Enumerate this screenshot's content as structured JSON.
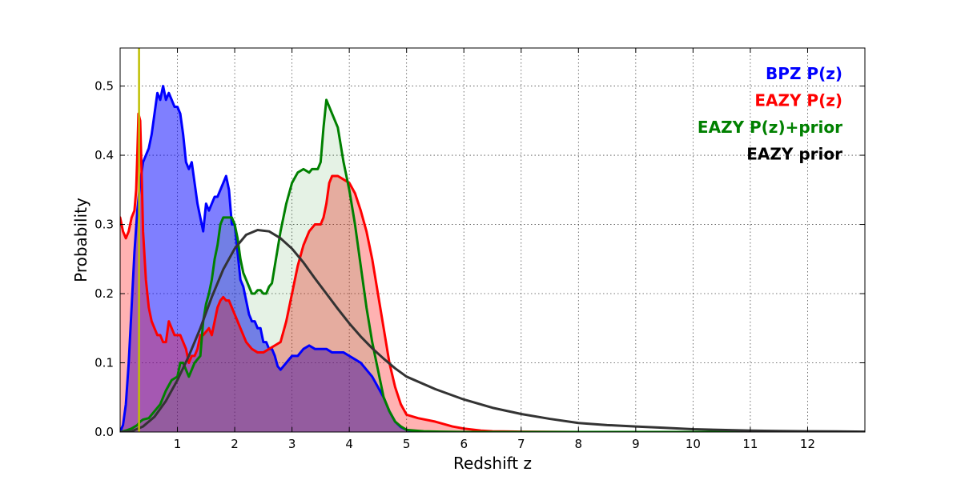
{
  "chart_data": {
    "type": "area",
    "xlabel": "Redshift z",
    "ylabel": "Probability",
    "xlim": [
      0,
      13
    ],
    "ylim": [
      0,
      0.555
    ],
    "xticks": [
      1,
      2,
      3,
      4,
      5,
      6,
      7,
      8,
      9,
      10,
      11,
      12
    ],
    "yticks": [
      0.0,
      0.1,
      0.2,
      0.3,
      0.4,
      0.5
    ],
    "xtick_labels": [
      "1",
      "2",
      "3",
      "4",
      "5",
      "6",
      "7",
      "8",
      "9",
      "10",
      "11",
      "12"
    ],
    "ytick_labels": [
      "0.0",
      "0.1",
      "0.2",
      "0.3",
      "0.4",
      "0.5"
    ],
    "grid": true,
    "legend_position": "top-right",
    "vline": {
      "x": 0.33,
      "color": "#bfbf00"
    },
    "series": [
      {
        "name": "BPZ P(z)",
        "color": "#0000ff",
        "fill": "#0000ff",
        "fill_opacity": 0.5,
        "x": [
          0,
          0.05,
          0.1,
          0.15,
          0.2,
          0.25,
          0.3,
          0.35,
          0.4,
          0.5,
          0.55,
          0.6,
          0.65,
          0.7,
          0.75,
          0.8,
          0.85,
          0.9,
          0.95,
          1.0,
          1.05,
          1.1,
          1.15,
          1.2,
          1.25,
          1.3,
          1.35,
          1.4,
          1.45,
          1.5,
          1.55,
          1.6,
          1.65,
          1.7,
          1.75,
          1.8,
          1.85,
          1.9,
          1.95,
          2.0,
          2.05,
          2.1,
          2.15,
          2.2,
          2.25,
          2.3,
          2.35,
          2.4,
          2.45,
          2.5,
          2.55,
          2.6,
          2.65,
          2.7,
          2.75,
          2.8,
          2.9,
          3.0,
          3.1,
          3.2,
          3.3,
          3.4,
          3.5,
          3.6,
          3.7,
          3.8,
          3.9,
          4.0,
          4.1,
          4.2,
          4.3,
          4.4,
          4.5,
          4.6,
          4.7,
          4.8,
          4.9,
          5.0,
          5.1,
          5.2,
          5.3,
          5.5,
          6.0,
          7,
          8,
          9,
          10,
          11,
          12,
          13
        ],
        "y": [
          0,
          0.01,
          0.04,
          0.1,
          0.18,
          0.26,
          0.32,
          0.36,
          0.39,
          0.41,
          0.43,
          0.46,
          0.49,
          0.48,
          0.5,
          0.48,
          0.49,
          0.48,
          0.47,
          0.47,
          0.46,
          0.43,
          0.39,
          0.38,
          0.39,
          0.36,
          0.33,
          0.31,
          0.29,
          0.33,
          0.32,
          0.33,
          0.34,
          0.34,
          0.35,
          0.36,
          0.37,
          0.35,
          0.3,
          0.3,
          0.26,
          0.22,
          0.21,
          0.19,
          0.17,
          0.16,
          0.16,
          0.15,
          0.15,
          0.13,
          0.13,
          0.12,
          0.12,
          0.11,
          0.095,
          0.09,
          0.1,
          0.11,
          0.11,
          0.12,
          0.125,
          0.12,
          0.12,
          0.12,
          0.115,
          0.115,
          0.115,
          0.11,
          0.105,
          0.1,
          0.09,
          0.08,
          0.065,
          0.05,
          0.03,
          0.015,
          0.007,
          0.003,
          0.0015,
          0.001,
          0.0005,
          0,
          0,
          0,
          0,
          0,
          0,
          0,
          0,
          0
        ]
      },
      {
        "name": "EAZY P(z)",
        "color": "#ff0000",
        "fill": "#ff0000",
        "fill_opacity": 0.3,
        "x": [
          0,
          0.05,
          0.1,
          0.15,
          0.2,
          0.25,
          0.28,
          0.3,
          0.32,
          0.35,
          0.38,
          0.4,
          0.45,
          0.5,
          0.55,
          0.6,
          0.65,
          0.7,
          0.75,
          0.8,
          0.85,
          0.9,
          0.95,
          1.0,
          1.05,
          1.1,
          1.15,
          1.2,
          1.25,
          1.3,
          1.35,
          1.4,
          1.45,
          1.5,
          1.55,
          1.6,
          1.65,
          1.7,
          1.75,
          1.8,
          1.85,
          1.9,
          1.95,
          2.0,
          2.05,
          2.1,
          2.2,
          2.3,
          2.4,
          2.5,
          2.6,
          2.7,
          2.8,
          2.9,
          3.0,
          3.1,
          3.2,
          3.3,
          3.4,
          3.5,
          3.55,
          3.6,
          3.65,
          3.7,
          3.8,
          3.9,
          4.0,
          4.1,
          4.2,
          4.3,
          4.4,
          4.5,
          4.6,
          4.7,
          4.8,
          4.9,
          5.0,
          5.2,
          5.5,
          5.8,
          6.0,
          6.3,
          6.5,
          7,
          8,
          9,
          10,
          11,
          12,
          13
        ],
        "y": [
          0.31,
          0.29,
          0.28,
          0.29,
          0.31,
          0.32,
          0.35,
          0.4,
          0.46,
          0.45,
          0.36,
          0.29,
          0.22,
          0.18,
          0.16,
          0.15,
          0.14,
          0.14,
          0.13,
          0.13,
          0.16,
          0.15,
          0.14,
          0.14,
          0.14,
          0.13,
          0.12,
          0.1,
          0.11,
          0.11,
          0.12,
          0.14,
          0.14,
          0.145,
          0.15,
          0.14,
          0.16,
          0.18,
          0.19,
          0.195,
          0.19,
          0.19,
          0.18,
          0.17,
          0.16,
          0.15,
          0.13,
          0.12,
          0.115,
          0.115,
          0.12,
          0.125,
          0.13,
          0.16,
          0.2,
          0.24,
          0.27,
          0.29,
          0.3,
          0.3,
          0.31,
          0.33,
          0.36,
          0.37,
          0.37,
          0.365,
          0.36,
          0.345,
          0.32,
          0.29,
          0.25,
          0.2,
          0.15,
          0.1,
          0.065,
          0.04,
          0.025,
          0.02,
          0.015,
          0.008,
          0.005,
          0.002,
          0.001,
          0.0005,
          0,
          0,
          0,
          0,
          0,
          0
        ]
      },
      {
        "name": "EAZY P(z)+prior",
        "color": "#008000",
        "fill": "#008000",
        "fill_opacity": 0.1,
        "x": [
          0,
          0.1,
          0.2,
          0.3,
          0.35,
          0.4,
          0.5,
          0.6,
          0.7,
          0.8,
          0.9,
          1.0,
          1.05,
          1.1,
          1.15,
          1.2,
          1.3,
          1.4,
          1.45,
          1.5,
          1.55,
          1.6,
          1.65,
          1.7,
          1.75,
          1.8,
          1.85,
          1.9,
          1.95,
          2.0,
          2.05,
          2.1,
          2.15,
          2.2,
          2.25,
          2.3,
          2.35,
          2.4,
          2.45,
          2.5,
          2.55,
          2.6,
          2.65,
          2.7,
          2.8,
          2.9,
          3.0,
          3.1,
          3.2,
          3.3,
          3.35,
          3.4,
          3.45,
          3.5,
          3.55,
          3.6,
          3.65,
          3.7,
          3.75,
          3.8,
          3.9,
          4.0,
          4.1,
          4.2,
          4.3,
          4.4,
          4.5,
          4.6,
          4.7,
          4.8,
          4.9,
          5.0,
          5.3,
          5.6,
          6.0,
          6.5,
          7,
          8,
          9,
          10,
          11,
          12,
          13
        ],
        "y": [
          0,
          0.002,
          0.005,
          0.01,
          0.015,
          0.018,
          0.02,
          0.03,
          0.04,
          0.06,
          0.075,
          0.08,
          0.1,
          0.1,
          0.09,
          0.08,
          0.1,
          0.11,
          0.16,
          0.185,
          0.2,
          0.22,
          0.25,
          0.27,
          0.3,
          0.31,
          0.31,
          0.31,
          0.31,
          0.3,
          0.28,
          0.25,
          0.23,
          0.22,
          0.21,
          0.2,
          0.2,
          0.205,
          0.205,
          0.2,
          0.2,
          0.21,
          0.215,
          0.24,
          0.29,
          0.33,
          0.36,
          0.375,
          0.38,
          0.375,
          0.38,
          0.38,
          0.38,
          0.39,
          0.44,
          0.48,
          0.47,
          0.46,
          0.45,
          0.44,
          0.39,
          0.35,
          0.3,
          0.24,
          0.18,
          0.13,
          0.09,
          0.05,
          0.03,
          0.015,
          0.008,
          0.003,
          0.001,
          0.0005,
          0,
          0,
          0,
          0,
          0,
          0,
          0,
          0,
          0
        ]
      },
      {
        "name": "EAZY prior",
        "color": "#333333",
        "fill": null,
        "x": [
          0,
          0.2,
          0.4,
          0.6,
          0.8,
          1.0,
          1.2,
          1.4,
          1.6,
          1.8,
          2.0,
          2.2,
          2.4,
          2.6,
          2.8,
          3.0,
          3.2,
          3.4,
          3.6,
          3.8,
          4.0,
          4.2,
          4.4,
          4.6,
          4.8,
          5.0,
          5.5,
          6.0,
          6.5,
          7.0,
          7.5,
          8.0,
          8.5,
          9.0,
          9.5,
          10,
          10.5,
          11,
          11.5,
          12,
          12.5,
          13
        ],
        "y": [
          0.0,
          0.001,
          0.008,
          0.022,
          0.045,
          0.075,
          0.11,
          0.15,
          0.195,
          0.235,
          0.265,
          0.285,
          0.292,
          0.29,
          0.28,
          0.265,
          0.245,
          0.222,
          0.2,
          0.178,
          0.157,
          0.138,
          0.121,
          0.106,
          0.092,
          0.08,
          0.062,
          0.047,
          0.035,
          0.026,
          0.019,
          0.013,
          0.01,
          0.008,
          0.006,
          0.004,
          0.003,
          0.002,
          0.0015,
          0.001,
          0.0008,
          0.0005
        ]
      }
    ]
  }
}
